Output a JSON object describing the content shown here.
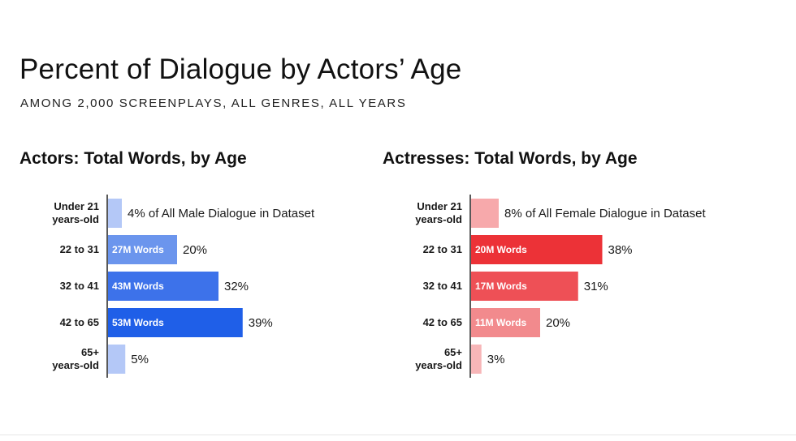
{
  "title": "Percent of Dialogue by Actors’ Age",
  "subtitle": "AMONG 2,000 SCREENPLAYS, ALL GENRES, ALL YEARS",
  "chart_data": [
    {
      "type": "bar",
      "orientation": "horizontal",
      "title": "Actors: Total Words, by Age",
      "categories": [
        [
          "Under 21",
          "years-old"
        ],
        [
          "22 to 31"
        ],
        [
          "32 to 41"
        ],
        [
          "42 to 65"
        ],
        [
          "65+",
          "years-old"
        ]
      ],
      "values": [
        4,
        20,
        32,
        39,
        5
      ],
      "value_labels": [
        "4% of All Male Dialogue in Dataset",
        "20%",
        "32%",
        "39%",
        "5%"
      ],
      "bar_labels": [
        "",
        "27M Words",
        "43M Words",
        "53M Words",
        ""
      ],
      "colors": [
        "#b4c8f7",
        "#6b95ed",
        "#3d72ea",
        "#1f5fe8",
        "#b4c8f7"
      ],
      "xlim": [
        0,
        40
      ],
      "grid": false,
      "legend": "none"
    },
    {
      "type": "bar",
      "orientation": "horizontal",
      "title": "Actresses: Total Words, by Age",
      "categories": [
        [
          "Under 21",
          "years-old"
        ],
        [
          "22 to 31"
        ],
        [
          "32 to 41"
        ],
        [
          "42 to 65"
        ],
        [
          "65+",
          "years-old"
        ]
      ],
      "values": [
        8,
        38,
        31,
        20,
        3
      ],
      "value_labels": [
        "8% of All Female Dialogue in Dataset",
        "38%",
        "31%",
        "20%",
        "3%"
      ],
      "bar_labels": [
        "",
        "20M Words",
        "17M Words",
        "11M Words",
        ""
      ],
      "colors": [
        "#f7a9ab",
        "#ec3237",
        "#ee5056",
        "#f28a8d",
        "#f7b6b8"
      ],
      "xlim": [
        0,
        40
      ],
      "grid": false,
      "legend": "none"
    }
  ]
}
